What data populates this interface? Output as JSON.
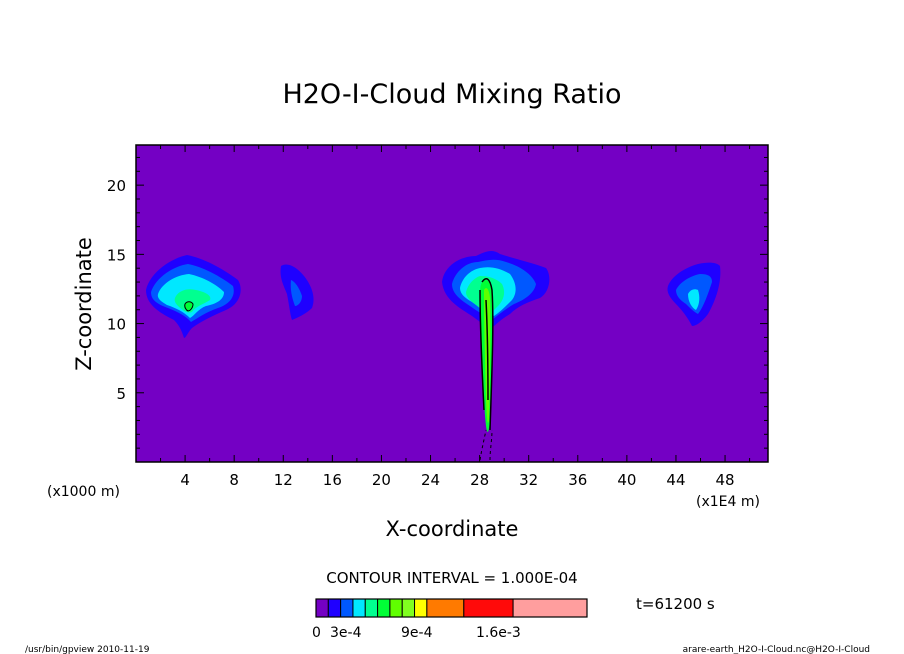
{
  "chart_data": {
    "type": "contour",
    "title": "H2O-I-Cloud Mixing Ratio",
    "xlabel": "X-coordinate",
    "ylabel": "Z-coordinate",
    "x_unit_left": "(x1000 m)",
    "x_unit_right": "(x1E4 m)",
    "xlim": [
      0,
      51.5
    ],
    "ylim": [
      0,
      22.9
    ],
    "x_ticks": [
      "4",
      "8",
      "12",
      "16",
      "20",
      "24",
      "28",
      "32",
      "36",
      "40",
      "44",
      "48"
    ],
    "y_ticks": [
      "5",
      "10",
      "15",
      "20"
    ],
    "contour_interval": "CONTOUR INTERVAL = 1.000E-04",
    "time_label": "t=61200 s",
    "colorbar": {
      "labels": [
        "0",
        "3e-4",
        "9e-4",
        "1.6e-3"
      ],
      "levels": [
        0,
        0.0001,
        0.0002,
        0.0003,
        0.0004,
        0.0005,
        0.0006,
        0.0007,
        0.0008,
        0.0009,
        0.0012,
        0.0016
      ],
      "colors": [
        "#7400c4",
        "#1f00ff",
        "#0058ff",
        "#00e8ff",
        "#00ff90",
        "#00ff36",
        "#60ff00",
        "#80ff20",
        "#ffff00",
        "#ff7a00",
        "#ff0a0a",
        "#ff9e9e"
      ]
    },
    "field_background": "#7400c4",
    "cloud_cells": [
      {
        "name": "cell-x4",
        "center": [
          4.2,
          12.2
        ]
      },
      {
        "name": "cell-x13",
        "center": [
          13.0,
          12.3
        ]
      },
      {
        "name": "cell-x28",
        "center": [
          28.5,
          12.5
        ]
      },
      {
        "name": "cell-x45",
        "center": [
          45.5,
          12.2
        ]
      }
    ],
    "footer_left": "/usr/bin/gpview  2010-11-19",
    "footer_right": "arare-earth_H2O-I-Cloud.nc@H2O-I-Cloud"
  }
}
